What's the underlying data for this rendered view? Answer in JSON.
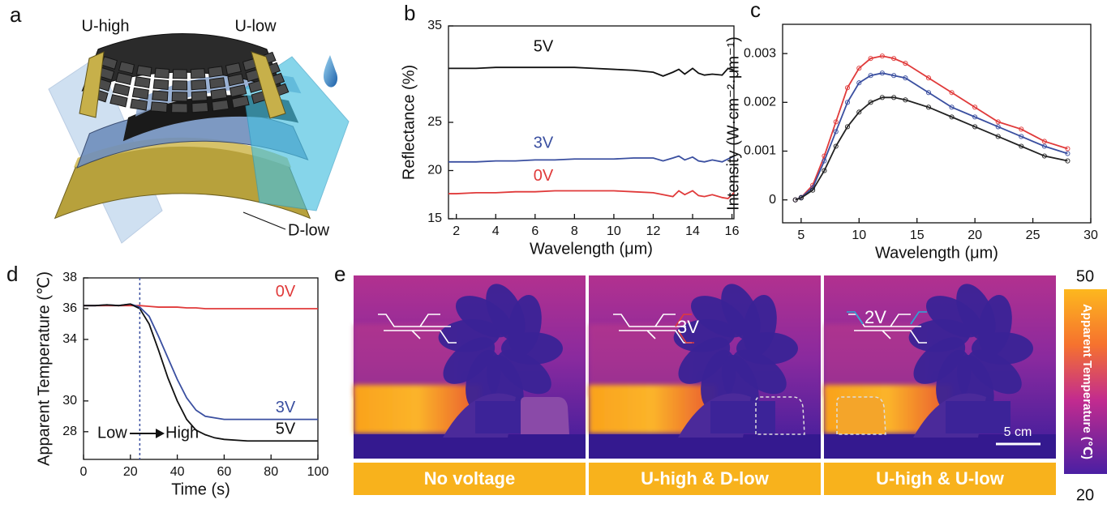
{
  "panel_labels": [
    "a",
    "b",
    "c",
    "d",
    "e"
  ],
  "diagram": {
    "labels": [
      "U-high",
      "U-low",
      "D-low"
    ]
  },
  "chart_data": [
    {
      "type": "line",
      "xlabel": "Wavelength (μm)",
      "ylabel": "Reflectance (%)",
      "xlim": [
        1.6,
        16.1
      ],
      "ylim": [
        15,
        35
      ],
      "xticks": [
        2,
        4,
        6,
        8,
        10,
        12,
        14,
        16
      ],
      "yticks": [
        15,
        20,
        25,
        35
      ],
      "x": [
        1.6,
        2,
        3,
        4,
        5,
        6,
        7,
        8,
        9,
        10,
        11,
        12,
        12.5,
        13,
        13.3,
        13.6,
        14,
        14.3,
        14.6,
        15,
        15.5,
        15.8,
        16.1
      ],
      "series": [
        {
          "name": "5V",
          "color": "#111111",
          "values": [
            30.6,
            30.6,
            30.6,
            30.7,
            30.7,
            30.7,
            30.7,
            30.7,
            30.6,
            30.5,
            30.4,
            30.2,
            29.8,
            30.2,
            30.5,
            30.0,
            30.6,
            30.1,
            29.9,
            30.0,
            29.9,
            30.6,
            30.4
          ]
        },
        {
          "name": "3V",
          "color": "#3a4fa0",
          "values": [
            20.9,
            20.9,
            20.9,
            21.0,
            21.0,
            21.1,
            21.1,
            21.2,
            21.2,
            21.2,
            21.3,
            21.3,
            21.0,
            21.3,
            21.5,
            21.1,
            21.4,
            21.0,
            20.9,
            21.1,
            20.9,
            21.2,
            21.5
          ]
        },
        {
          "name": "0V",
          "color": "#e03a3a",
          "values": [
            17.6,
            17.6,
            17.7,
            17.7,
            17.8,
            17.8,
            17.9,
            17.9,
            17.9,
            17.9,
            17.8,
            17.7,
            17.5,
            17.3,
            17.9,
            17.5,
            17.9,
            17.4,
            17.3,
            17.5,
            17.2,
            17.1,
            17.7
          ]
        }
      ]
    },
    {
      "type": "line",
      "markers": true,
      "xlabel": "Wavelength (μm)",
      "ylabel": "Intensity (W·cm⁻²·μm⁻¹)",
      "xlim": [
        3.4,
        30
      ],
      "ylim": [
        -0.00047,
        0.0036
      ],
      "xticks": [
        5,
        10,
        15,
        20,
        25,
        30
      ],
      "yticks": [
        0,
        0.001,
        0.002,
        0.003
      ],
      "x": [
        4.5,
        5,
        6,
        7,
        8,
        9,
        10,
        11,
        12,
        13,
        14,
        16,
        18,
        20,
        22,
        24,
        26,
        28
      ],
      "series": [
        {
          "color": "#e03a3a",
          "values": [
            0,
            5e-05,
            0.0003,
            0.0009,
            0.0016,
            0.0023,
            0.0027,
            0.0029,
            0.00295,
            0.0029,
            0.0028,
            0.0025,
            0.0022,
            0.0019,
            0.0016,
            0.00145,
            0.0012,
            0.00105
          ]
        },
        {
          "color": "#3a4fa0",
          "values": [
            0,
            5e-05,
            0.00025,
            0.0008,
            0.0014,
            0.002,
            0.0024,
            0.00255,
            0.0026,
            0.00255,
            0.0025,
            0.0022,
            0.0019,
            0.0017,
            0.0015,
            0.0013,
            0.0011,
            0.00095
          ]
        },
        {
          "color": "#222222",
          "values": [
            0,
            4e-05,
            0.0002,
            0.0006,
            0.0011,
            0.0015,
            0.0018,
            0.002,
            0.0021,
            0.0021,
            0.00205,
            0.0019,
            0.0017,
            0.0015,
            0.0013,
            0.0011,
            0.0009,
            0.0008
          ]
        }
      ]
    },
    {
      "type": "line",
      "xlabel": "Time (s)",
      "ylabel": "Apparent Temperature (℃)",
      "xlim": [
        0,
        100
      ],
      "ylim": [
        26.2,
        38
      ],
      "xticks": [
        0,
        20,
        40,
        60,
        80,
        100
      ],
      "yticks": [
        28,
        30,
        34,
        36,
        38
      ],
      "vline": 24,
      "annotations": [
        "Low",
        "High"
      ],
      "x": [
        0,
        5,
        10,
        15,
        20,
        24,
        28,
        32,
        36,
        40,
        44,
        48,
        52,
        56,
        60,
        70,
        80,
        90,
        100
      ],
      "series": [
        {
          "name": "0V",
          "color": "#e03a3a",
          "values": [
            36.2,
            36.2,
            36.2,
            36.2,
            36.2,
            36.2,
            36.15,
            36.1,
            36.1,
            36.1,
            36.05,
            36.05,
            36.0,
            36.0,
            36.0,
            36.0,
            36.0,
            36.0,
            36.0
          ]
        },
        {
          "name": "3V",
          "color": "#3a4fa0",
          "values": [
            36.2,
            36.2,
            36.25,
            36.2,
            36.3,
            36.1,
            35.5,
            34.2,
            32.8,
            31.4,
            30.2,
            29.4,
            29.0,
            28.9,
            28.8,
            28.8,
            28.8,
            28.8,
            28.8
          ]
        },
        {
          "name": "5V",
          "color": "#111111",
          "values": [
            36.2,
            36.2,
            36.25,
            36.2,
            36.3,
            36.0,
            35.0,
            33.3,
            31.5,
            30.0,
            28.8,
            28.1,
            27.8,
            27.6,
            27.5,
            27.4,
            27.4,
            27.4,
            27.4
          ]
        }
      ]
    }
  ],
  "thermal": {
    "captions": [
      "No voltage",
      "U-high & D-low",
      "U-high & U-low"
    ],
    "annotations": [
      "3V",
      "2V"
    ],
    "scale_bar": "5 cm",
    "colorbar": {
      "max": 50,
      "min": 20,
      "label": "Apparent Temperature (℃)"
    }
  }
}
